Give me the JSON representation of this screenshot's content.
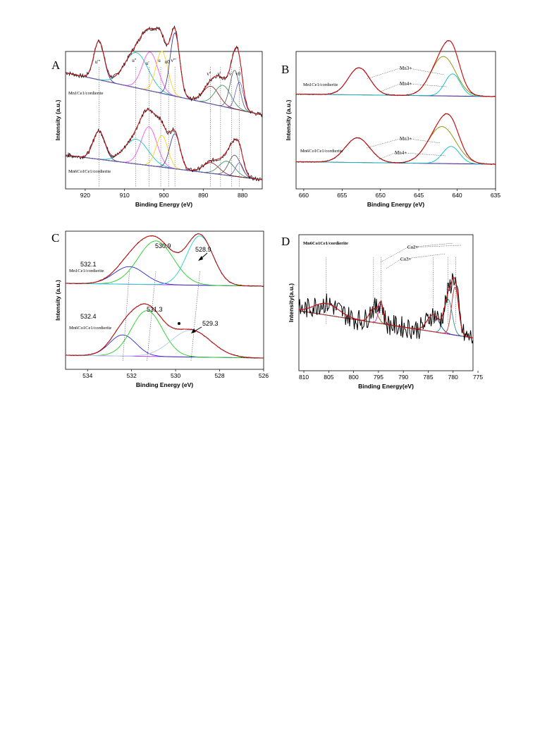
{
  "chart_data": [
    {
      "panel": "A",
      "type": "line",
      "xlabel": "Binding Energy (eV)",
      "ylabel": "Intensity (a.u.)",
      "xlim": [
        925,
        875
      ],
      "xticks": [
        920,
        910,
        900,
        890,
        880
      ],
      "samples": [
        {
          "label_html": "Mn<tspan baseline-shift='sub' font-size='5'>1</tspan>Ce<tspan baseline-shift='sub' font-size='5'>1</tspan>/cordierite",
          "label": "Mn1Ce1/cordierite"
        },
        {
          "label": "Mn6Co1Ce1/cordierite"
        }
      ],
      "peak_labels": [
        "u'''",
        "u''",
        "u'",
        "u",
        "u0",
        "v'''",
        "v''",
        "v'",
        "v",
        "v0"
      ],
      "peak_positions": [
        916.5,
        907.2,
        903.8,
        900.8,
        898.8,
        897.2,
        888.2,
        885.6,
        882.8,
        880.8
      ],
      "extra_label": "b",
      "series": [
        {
          "sample": 1,
          "color": "#000000",
          "peaks": [
            [
              916.5,
              0.55,
              1.3
            ],
            [
              907,
              0.5,
              3
            ],
            [
              903.5,
              0.55,
              2
            ],
            [
              900.5,
              0.6,
              1.5
            ],
            [
              897.2,
              0.9,
              1.2
            ],
            [
              888,
              0.25,
              2
            ],
            [
              885,
              0.3,
              2
            ],
            [
              882,
              0.55,
              1.2
            ],
            [
              880.8,
              0.4,
              1
            ]
          ]
        },
        {
          "sample": 2,
          "color": "#000000",
          "peaks": [
            [
              916.5,
              0.4,
              1.5
            ],
            [
              907,
              0.35,
              3
            ],
            [
              903.8,
              0.55,
              2
            ],
            [
              900.5,
              0.45,
              1.5
            ],
            [
              897.2,
              0.5,
              1.3
            ],
            [
              888,
              0.15,
              2
            ],
            [
              884,
              0.2,
              2
            ],
            [
              882,
              0.3,
              1.5
            ],
            [
              880.8,
              0.2,
              1
            ]
          ]
        }
      ]
    },
    {
      "panel": "B",
      "type": "line",
      "xlabel": "Binding Energy (eV)",
      "ylabel": "Intensity (a.u.)",
      "xlim": [
        661,
        635
      ],
      "xticks": [
        660,
        655,
        650,
        645,
        640,
        635
      ],
      "samples": [
        {
          "label": "Mn1Ce1/cordierite"
        },
        {
          "label": "Mn6Co1Ce1/cordierite"
        }
      ],
      "peak_labels": [
        "Mn3+",
        "Mn4+"
      ],
      "series": [
        {
          "sample": 1,
          "peaks": [
            [
              652.8,
              0.55,
              1.4
            ],
            [
              641.8,
              0.8,
              1.6
            ],
            [
              640.6,
              0.45,
              1.0
            ]
          ]
        },
        {
          "sample": 2,
          "peaks": [
            [
              653,
              0.5,
              1.6
            ],
            [
              642,
              0.75,
              1.8
            ],
            [
              640.8,
              0.35,
              1.1
            ]
          ]
        }
      ]
    },
    {
      "panel": "C",
      "type": "line",
      "xlabel": "Binding Energy (eV)",
      "ylabel": "Intensity (a.u.)",
      "xlim": [
        535,
        526
      ],
      "xticks": [
        534,
        532,
        530,
        528,
        526
      ],
      "samples": [
        {
          "label": "Mn1Ce1/cordierite",
          "peak_values": [
            "532.1",
            "530.9",
            "528.9"
          ],
          "peaks": [
            532.1,
            530.9,
            528.9
          ]
        },
        {
          "label": "Mn6Co1Ce1/cordierite",
          "peak_values": [
            "532.4",
            "531.3",
            "529.3"
          ],
          "peaks": [
            532.4,
            531.3,
            529.3
          ]
        }
      ]
    },
    {
      "panel": "D",
      "type": "line",
      "xlabel": "Binding Energy(eV)",
      "ylabel": "Intensity(a.u.)",
      "xlim": [
        811,
        776
      ],
      "xticks": [
        810,
        805,
        800,
        795,
        790,
        785,
        780,
        775
      ],
      "samples": [
        {
          "label": "Mn6Co1Ce1/cordierite"
        }
      ],
      "peak_labels": [
        "Co2+",
        "Co3+"
      ],
      "peak_positions": [
        805.5,
        796,
        794.5,
        784,
        781,
        779.5
      ]
    }
  ]
}
